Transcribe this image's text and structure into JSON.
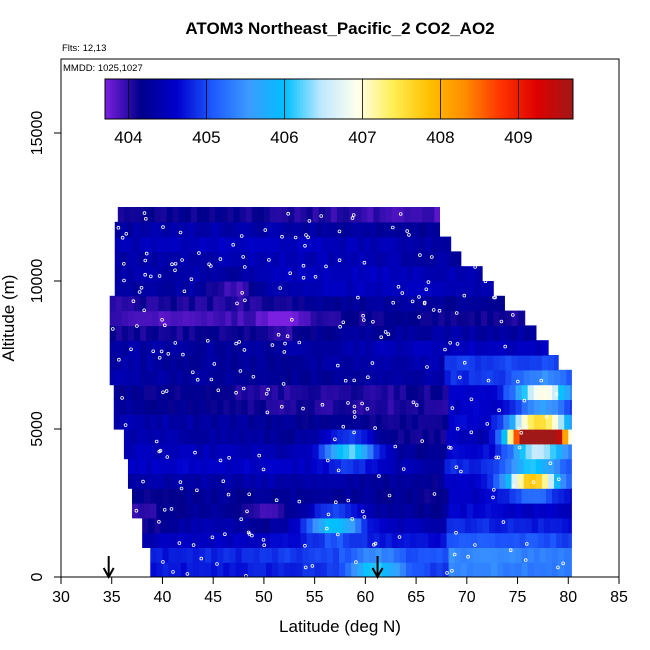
{
  "chart_data": {
    "type": "heatmap",
    "title": "ATOM3 Northeast_Pacific_2 CO2_AO2",
    "annotations": [
      "Flts: 12,13",
      "MMDD: 1025,1027"
    ],
    "xlabel": "Latitude (deg N)",
    "ylabel": "Altitude (m)",
    "xlim": [
      30,
      85
    ],
    "ylim": [
      0,
      17500
    ],
    "x_ticks": [
      30,
      35,
      40,
      45,
      50,
      55,
      60,
      65,
      70,
      75,
      80,
      85
    ],
    "y_ticks": [
      0,
      5000,
      10000,
      15000
    ],
    "grid": false,
    "colorbar": {
      "position": "top-inside",
      "range": [
        403.7,
        409.7
      ],
      "ticks": [
        404,
        405,
        406,
        407,
        408,
        409
      ],
      "colors": [
        "#7b1fe0",
        "#00008b",
        "#0000cd",
        "#1e5aff",
        "#3c9bff",
        "#00bfff",
        "#bfe8ff",
        "#ffffee",
        "#ffee55",
        "#ffc000",
        "#ff8c00",
        "#ff3300",
        "#dd0000",
        "#a01818"
      ]
    },
    "section_extent": {
      "lat_range": [
        34.5,
        80.3
      ],
      "alt_range": [
        0,
        12500
      ],
      "row_height_m": 500
    },
    "arrows_at_latitude": [
      34.7,
      61.2
    ],
    "hotspots": [
      {
        "lat": 76.5,
        "alt": 4800,
        "value": 409.2
      },
      {
        "lat": 78.0,
        "alt": 4800,
        "value": 408.0
      },
      {
        "lat": 76.5,
        "alt": 3300,
        "value": 407.6
      },
      {
        "lat": 77.5,
        "alt": 6200,
        "value": 406.6
      },
      {
        "lat": 58.5,
        "alt": 4300,
        "value": 406.2
      },
      {
        "lat": 57.0,
        "alt": 1800,
        "value": 405.9
      },
      {
        "lat": 61.0,
        "alt": 300,
        "value": 405.5
      },
      {
        "lat": 47.0,
        "alt": 9800,
        "value": 403.8
      },
      {
        "lat": 52.0,
        "alt": 8700,
        "value": 403.9
      },
      {
        "lat": 50.0,
        "alt": 2100,
        "value": 403.9
      },
      {
        "lat": 73.0,
        "alt": 4800,
        "value": 403.9
      },
      {
        "lat": 37.0,
        "alt": 1900,
        "value": 403.9
      }
    ]
  }
}
